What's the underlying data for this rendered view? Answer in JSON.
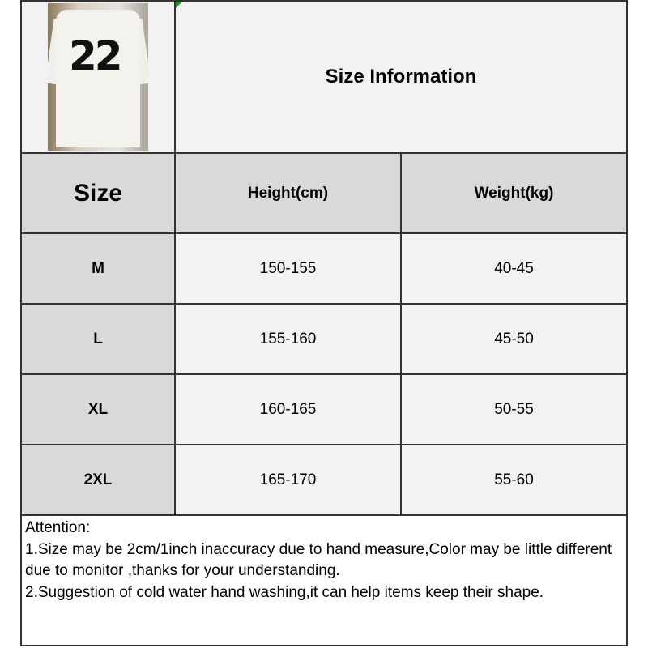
{
  "product_image": {
    "label": "22",
    "alt": "white t-shirt with number 22"
  },
  "title": "Size Information",
  "headers": [
    "Size",
    "Height(cm)",
    "Weight(kg)"
  ],
  "rows": [
    [
      "M",
      "150-155",
      "40-45"
    ],
    [
      "L",
      "155-160",
      "45-50"
    ],
    [
      "XL",
      "160-165",
      "50-55"
    ],
    [
      "2XL",
      "165-170",
      "55-60"
    ]
  ],
  "notes": [
    "Attention:",
    "1.Size may be 2cm/1inch inaccuracy due to hand measure,Color may be little different due to monitor ,thanks for your understanding.",
    "2.Suggestion of cold water hand washing,it can help items keep their shape."
  ],
  "colors": {
    "header_bg": "#d9d9d9",
    "cell_bg": "#f2f2f2",
    "border": "#333333"
  }
}
